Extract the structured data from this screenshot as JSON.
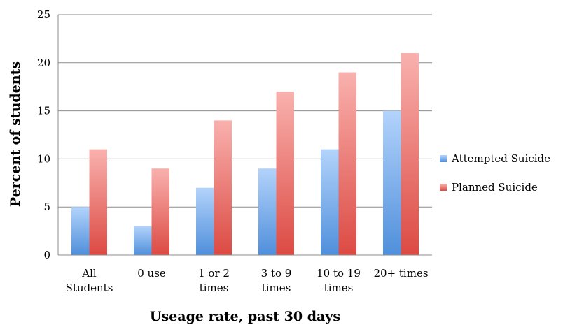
{
  "chart_data": {
    "type": "bar",
    "title": "",
    "xlabel": "Useage rate, past 30 days",
    "ylabel": "Percent of students",
    "ylim": [
      0,
      25
    ],
    "yticks": [
      0,
      5,
      10,
      15,
      20,
      25
    ],
    "grid": true,
    "legend_position": "right",
    "categories": [
      [
        "All",
        "Students"
      ],
      [
        "0 use"
      ],
      [
        "1 or 2",
        "times"
      ],
      [
        "3 to 9",
        "times"
      ],
      [
        "10 to 19",
        "times"
      ],
      [
        "20+ times"
      ]
    ],
    "series": [
      {
        "name": "Attempted Suicide",
        "values": [
          5,
          3,
          7,
          9,
          11,
          15
        ],
        "color_top": "#b3d3fb",
        "color_bottom": "#4f8fdb"
      },
      {
        "name": "Planned Suicide",
        "values": [
          11,
          9,
          14,
          17,
          19,
          21
        ],
        "color_top": "#f9b1ae",
        "color_bottom": "#dc4a43"
      }
    ]
  }
}
